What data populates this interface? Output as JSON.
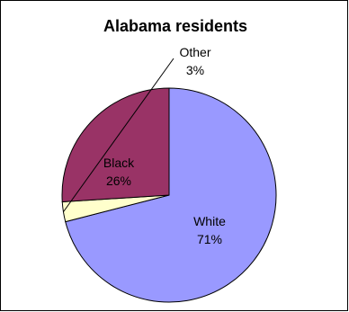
{
  "chart_data": {
    "type": "pie",
    "title": "Alabama residents",
    "slices": [
      {
        "label": "White",
        "value": 71,
        "value_label": "71%",
        "color": "#9999FF"
      },
      {
        "label": "Other",
        "value": 3,
        "value_label": "3%",
        "color": "#FFFFCC"
      },
      {
        "label": "Black",
        "value": 26,
        "value_label": "26%",
        "color": "#993366"
      }
    ],
    "start_angle": "12 o'clock",
    "direction": "clockwise",
    "legend": "none",
    "outline_color": "#000000"
  }
}
